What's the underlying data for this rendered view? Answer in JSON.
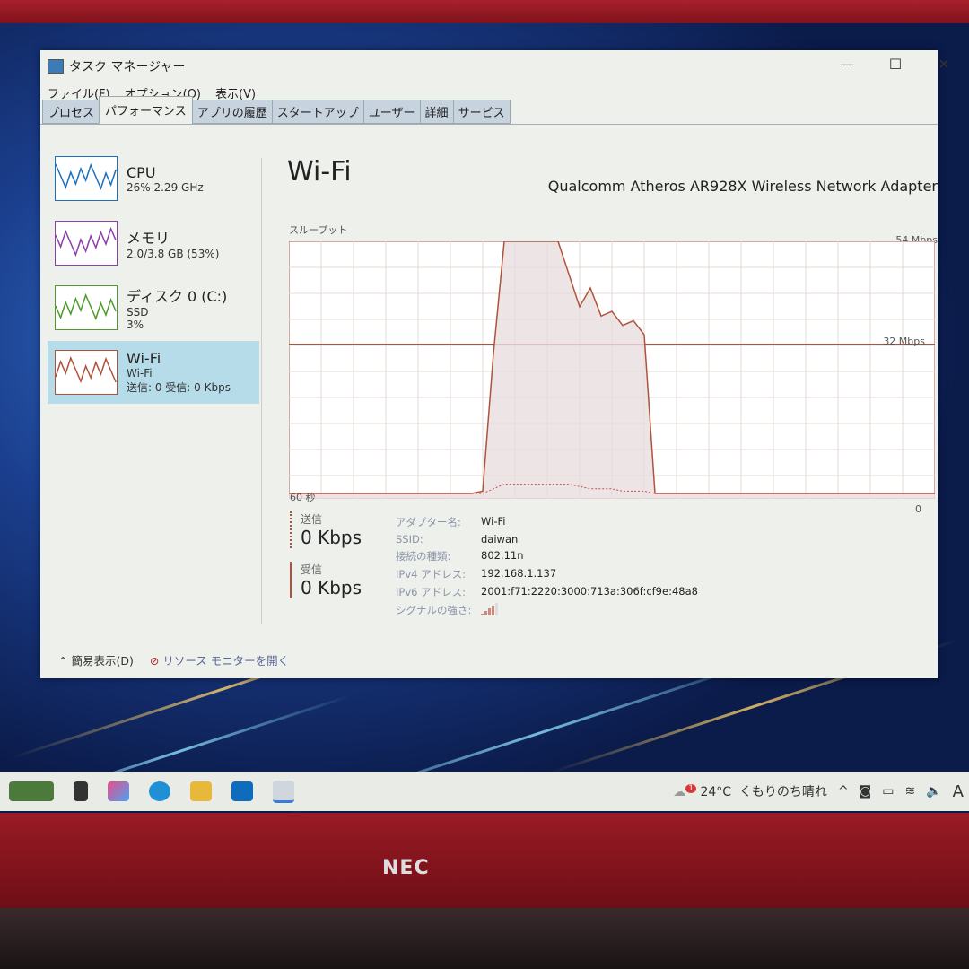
{
  "window": {
    "title": "タスク マネージャー"
  },
  "menu": [
    "ファイル(F)",
    "オプション(O)",
    "表示(V)"
  ],
  "tabs": [
    {
      "label": "プロセス",
      "active": false
    },
    {
      "label": "パフォーマンス",
      "active": true
    },
    {
      "label": "アプリの履歴",
      "active": false
    },
    {
      "label": "スタートアップ",
      "active": false
    },
    {
      "label": "ユーザー",
      "active": false
    },
    {
      "label": "詳細",
      "active": false
    },
    {
      "label": "サービス",
      "active": false
    }
  ],
  "sidebar": [
    {
      "title": "CPU",
      "line1": "26% 2.29 GHz",
      "line2": "",
      "color": "#1a6fc0"
    },
    {
      "title": "メモリ",
      "line1": "2.0/3.8 GB (53%)",
      "line2": "",
      "color": "#8b3fa8"
    },
    {
      "title": "ディスク 0 (C:)",
      "line1": "SSD",
      "line2": "3%",
      "color": "#4d9a2a"
    },
    {
      "title": "Wi-Fi",
      "line1": "Wi-Fi",
      "line2": "送信: 0 受信: 0 Kbps",
      "color": "#b0523a",
      "selected": true
    }
  ],
  "main": {
    "title": "Wi-Fi",
    "adapter": "Qualcomm Atheros AR928X Wireless Network Adapter",
    "graph_label": "スループット",
    "max_label": "54 Mbps",
    "mid_label": "32 Mbps",
    "x_left": "60 秒",
    "x_right": "0",
    "receive_mbps": [
      0,
      0,
      0,
      0,
      0,
      0,
      0,
      0,
      0,
      0,
      0,
      0,
      0,
      0,
      0,
      0,
      0,
      0,
      0.5,
      30,
      54,
      54,
      54,
      54,
      54,
      54,
      47,
      40,
      44,
      38,
      39,
      36,
      37,
      34,
      0,
      0,
      0,
      0,
      0,
      0,
      0,
      0,
      0,
      0,
      0,
      0,
      0,
      0,
      0,
      0,
      0,
      0,
      0,
      0,
      0,
      0,
      0,
      0,
      0,
      0,
      0
    ],
    "send_mbps": [
      0,
      0,
      0,
      0,
      0,
      0,
      0,
      0,
      0,
      0,
      0,
      0,
      0,
      0,
      0,
      0,
      0,
      0,
      0,
      1,
      2,
      2,
      2,
      2,
      2,
      2,
      2,
      1.5,
      1,
      1,
      1,
      0.5,
      0.5,
      0.5,
      0,
      0,
      0,
      0,
      0,
      0,
      0,
      0,
      0,
      0,
      0,
      0,
      0,
      0,
      0,
      0,
      0,
      0,
      0,
      0,
      0,
      0,
      0,
      0,
      0,
      0,
      0
    ],
    "send": {
      "label": "送信",
      "value": "0 Kbps"
    },
    "receive": {
      "label": "受信",
      "value": "0 Kbps"
    },
    "details": [
      {
        "key": "アダプター名:",
        "value": "Wi-Fi"
      },
      {
        "key": "SSID:",
        "value": "daiwan"
      },
      {
        "key": "接続の種類:",
        "value": "802.11n"
      },
      {
        "key": "IPv4 アドレス:",
        "value": "192.168.1.137"
      },
      {
        "key": "IPv6 アドレス:",
        "value": "2001:f71:2220:3000:713a:306f:cf9e:48a8"
      },
      {
        "key": "シグナルの強さ:",
        "value": ""
      }
    ],
    "signal_bars": 4
  },
  "footer": {
    "simple": "簡易表示(D)",
    "monitor": "リソース モニターを開く"
  },
  "taskbar": {
    "temp": "24°C",
    "weather": "くもりのち晴れ",
    "notification_count": "1",
    "lang": "A"
  },
  "brand": "NEC",
  "colors": {
    "accent": "#b0523a",
    "selected": "#b6dcea"
  }
}
